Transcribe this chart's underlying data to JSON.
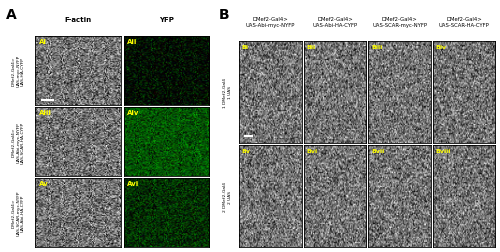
{
  "fig_width": 5.0,
  "fig_height": 2.53,
  "dpi": 100,
  "bg_color": "#ffffff",
  "border_color": "#000000",
  "label_color_yellow": "#ffff00",
  "section_A_label": "A",
  "section_B_label": "B",
  "col_headers_A": [
    "F-actin",
    "YFP"
  ],
  "row_labels_A": [
    "DMef2-Gal4>\nUAS-myc-NYFP\nUAS-HA-CYFP",
    "DMef2-Gal4>\nUAS-Abi-myc-NYFP\nUAS-SCAR-HA-CYFP",
    "DMef2-Gal4>\nUAS-SCAR-myc-NYFP\nUAS-Abi-HA-CYFP"
  ],
  "panel_labels_A": [
    "Ai",
    "Aii",
    "Aiii",
    "Aiv",
    "Av",
    "Avi"
  ],
  "col_headers_B": [
    "DMef2-Gal4>\nUAS-Abi-myc-NYFP",
    "DMef2-Gal4>\nUAS-Abi-HA-CYFP",
    "DMef2-Gal4>\nUAS-SCAR-myc-NYFP",
    "DMef2-Gal4>\nUAS-SCAR-HA-CYFP"
  ],
  "row_labels_B": [
    "1 DMef2-Gal4\n1 UAS",
    "2 DMef2-Gal4\n2 UAS"
  ],
  "panel_labels_B": [
    "Bi",
    "Bii",
    "Biii",
    "Biv",
    "Bv",
    "Bvi",
    "Bvii",
    "Bviii"
  ],
  "gray_brightness": 0.45,
  "gray_std": 0.22,
  "green_brightness_low": 0.02,
  "green_brightness_mid": 0.32,
  "green_brightness_high": 0.18,
  "green_std": 0.15
}
